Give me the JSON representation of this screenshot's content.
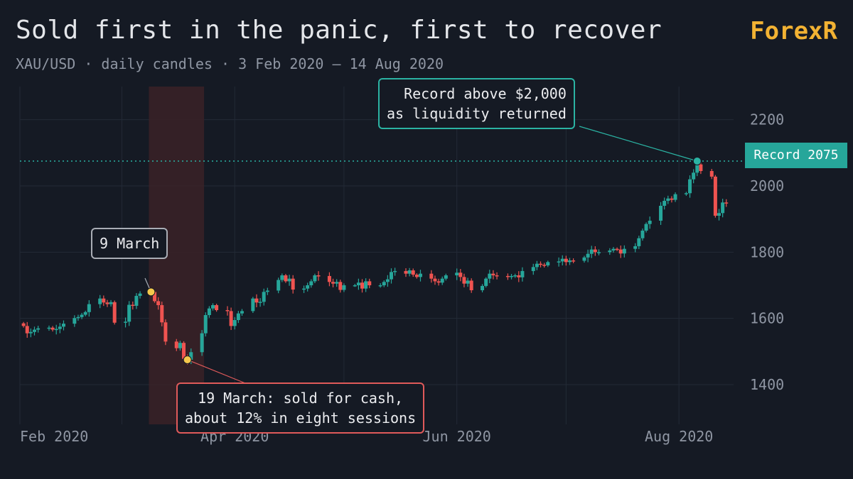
{
  "header": {
    "title": "Sold first in the panic, first to recover",
    "subtitle": "XAU/USD · daily candles · 3 Feb 2020 – 14 Aug 2020",
    "brand": "ForexR"
  },
  "colors": {
    "background": "#151a24",
    "up": "#26a69a",
    "down": "#ef5350",
    "shade": "#3a2227",
    "grid": "#232a36",
    "axis_text": "#8f96a3",
    "marker": "#f5c84c",
    "record_line": "#2bb3a3"
  },
  "annotations": {
    "record": [
      "Record above $2,000",
      "as liquidity returned"
    ],
    "march9": "9 March",
    "march19": [
      "19 March: sold for cash,",
      "about 12% in eight sessions"
    ],
    "record_badge": "Record 2075"
  },
  "chart_data": {
    "type": "candlestick",
    "x_ticks": [
      {
        "date": "2020-02-01",
        "label": "Feb 2020"
      },
      {
        "date": "2020-04-01",
        "label": "Apr 2020"
      },
      {
        "date": "2020-06-01",
        "label": "Jun 2020"
      },
      {
        "date": "2020-08-01",
        "label": "Aug 2020"
      }
    ],
    "y_ticks": [
      1400,
      1600,
      1800,
      2000,
      2200
    ],
    "ylim": [
      1280,
      2300
    ],
    "xlim": [
      "2020-02-02",
      "2020-08-16"
    ],
    "record_level": 2075,
    "shaded_range": [
      "2020-03-09",
      "2020-03-23"
    ],
    "markers": [
      {
        "date": "2020-03-09",
        "value": 1680,
        "label": "9 March"
      },
      {
        "date": "2020-03-19",
        "value": 1475,
        "label": "19 March"
      },
      {
        "date": "2020-08-06",
        "value": 2075,
        "label": "Record"
      }
    ],
    "dates": [
      "2020-02-03",
      "2020-02-04",
      "2020-02-05",
      "2020-02-06",
      "2020-02-07",
      "2020-02-10",
      "2020-02-11",
      "2020-02-12",
      "2020-02-13",
      "2020-02-14",
      "2020-02-17",
      "2020-02-18",
      "2020-02-19",
      "2020-02-20",
      "2020-02-21",
      "2020-02-24",
      "2020-02-25",
      "2020-02-26",
      "2020-02-27",
      "2020-02-28",
      "2020-03-02",
      "2020-03-03",
      "2020-03-04",
      "2020-03-05",
      "2020-03-06",
      "2020-03-09",
      "2020-03-10",
      "2020-03-11",
      "2020-03-12",
      "2020-03-13",
      "2020-03-16",
      "2020-03-17",
      "2020-03-18",
      "2020-03-19",
      "2020-03-20",
      "2020-03-23",
      "2020-03-24",
      "2020-03-25",
      "2020-03-26",
      "2020-03-27",
      "2020-03-30",
      "2020-03-31",
      "2020-04-01",
      "2020-04-02",
      "2020-04-03",
      "2020-04-06",
      "2020-04-07",
      "2020-04-08",
      "2020-04-09",
      "2020-04-10",
      "2020-04-13",
      "2020-04-14",
      "2020-04-15",
      "2020-04-16",
      "2020-04-17",
      "2020-04-20",
      "2020-04-21",
      "2020-04-22",
      "2020-04-23",
      "2020-04-24",
      "2020-04-27",
      "2020-04-28",
      "2020-04-29",
      "2020-04-30",
      "2020-05-01",
      "2020-05-04",
      "2020-05-05",
      "2020-05-06",
      "2020-05-07",
      "2020-05-08",
      "2020-05-11",
      "2020-05-12",
      "2020-05-13",
      "2020-05-14",
      "2020-05-15",
      "2020-05-18",
      "2020-05-19",
      "2020-05-20",
      "2020-05-21",
      "2020-05-22",
      "2020-05-25",
      "2020-05-26",
      "2020-05-27",
      "2020-05-28",
      "2020-05-29",
      "2020-06-01",
      "2020-06-02",
      "2020-06-03",
      "2020-06-04",
      "2020-06-05",
      "2020-06-08",
      "2020-06-09",
      "2020-06-10",
      "2020-06-11",
      "2020-06-12",
      "2020-06-15",
      "2020-06-16",
      "2020-06-17",
      "2020-06-18",
      "2020-06-19",
      "2020-06-22",
      "2020-06-23",
      "2020-06-24",
      "2020-06-25",
      "2020-06-26",
      "2020-06-29",
      "2020-06-30",
      "2020-07-01",
      "2020-07-02",
      "2020-07-03",
      "2020-07-06",
      "2020-07-07",
      "2020-07-08",
      "2020-07-09",
      "2020-07-10",
      "2020-07-13",
      "2020-07-14",
      "2020-07-15",
      "2020-07-16",
      "2020-07-17",
      "2020-07-20",
      "2020-07-21",
      "2020-07-22",
      "2020-07-23",
      "2020-07-24",
      "2020-07-27",
      "2020-07-28",
      "2020-07-29",
      "2020-07-30",
      "2020-07-31",
      "2020-08-03",
      "2020-08-04",
      "2020-08-05",
      "2020-08-06",
      "2020-08-07",
      "2020-08-10",
      "2020-08-11",
      "2020-08-12",
      "2020-08-13",
      "2020-08-14"
    ],
    "closes": [
      1577,
      1555,
      1559,
      1566,
      1570,
      1572,
      1566,
      1568,
      1575,
      1584,
      1601,
      1604,
      1611,
      1619,
      1643,
      1660,
      1648,
      1643,
      1649,
      1587,
      1590,
      1641,
      1638,
      1668,
      1675,
      1680,
      1652,
      1640,
      1588,
      1530,
      1510,
      1526,
      1478,
      1475,
      1498,
      1555,
      1610,
      1630,
      1640,
      1625,
      1622,
      1577,
      1595,
      1615,
      1622,
      1660,
      1648,
      1650,
      1680,
      1684,
      1716,
      1730,
      1712,
      1720,
      1687,
      1690,
      1700,
      1712,
      1730,
      1728,
      1710,
      1705,
      1710,
      1686,
      1700,
      1700,
      1708,
      1690,
      1712,
      1700,
      1700,
      1710,
      1718,
      1740,
      1743,
      1735,
      1745,
      1732,
      1725,
      1735,
      1720,
      1712,
      1708,
      1720,
      1730,
      1738,
      1725,
      1705,
      1714,
      1685,
      1698,
      1720,
      1735,
      1730,
      1728,
      1725,
      1728,
      1730,
      1724,
      1743,
      1755,
      1765,
      1762,
      1760,
      1770,
      1772,
      1780,
      1770,
      1775,
      1774,
      1784,
      1795,
      1808,
      1800,
      1800,
      1805,
      1810,
      1808,
      1796,
      1810,
      1818,
      1842,
      1865,
      1885,
      1895,
      1940,
      1955,
      1962,
      1958,
      1975,
      1978,
      2020,
      2040,
      2065,
      2045,
      2028,
      1910,
      1918,
      1950,
      1948
    ],
    "opens_start": 1585
  }
}
